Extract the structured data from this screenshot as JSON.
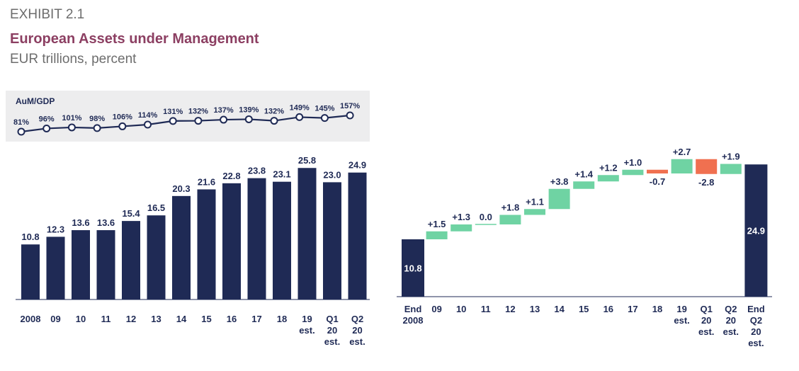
{
  "header": {
    "exhibit": "EXHIBIT 2.1",
    "title": "European Assets under Management",
    "subtitle": "EUR trillions, percent"
  },
  "colors": {
    "bar": "#1f2a55",
    "increase": "#6fd3a3",
    "decrease": "#f07050",
    "panel_bg": "#ededee",
    "title": "#8c3f62"
  },
  "chart_data": [
    {
      "type": "line",
      "title": "AuM/GDP",
      "x": [
        "2008",
        "09",
        "10",
        "11",
        "12",
        "13",
        "14",
        "15",
        "16",
        "17",
        "18",
        "19 est.",
        "Q1 20 est.",
        "Q2 20 est."
      ],
      "values": [
        81,
        96,
        101,
        98,
        106,
        114,
        131,
        132,
        137,
        139,
        132,
        149,
        145,
        157
      ],
      "labels": [
        "81%",
        "96%",
        "101%",
        "98%",
        "106%",
        "114%",
        "131%",
        "132%",
        "137%",
        "139%",
        "132%",
        "149%",
        "145%",
        "157%"
      ],
      "unit": "%"
    },
    {
      "type": "bar",
      "categories": [
        [
          "2008"
        ],
        [
          "09"
        ],
        [
          "10"
        ],
        [
          "11"
        ],
        [
          "12"
        ],
        [
          "13"
        ],
        [
          "14"
        ],
        [
          "15"
        ],
        [
          "16"
        ],
        [
          "17"
        ],
        [
          "18"
        ],
        [
          "19",
          "est."
        ],
        [
          "Q1",
          "20",
          "est."
        ],
        [
          "Q2",
          "20",
          "est."
        ]
      ],
      "values": [
        10.8,
        12.3,
        13.6,
        13.6,
        15.4,
        16.5,
        20.3,
        21.6,
        22.8,
        23.8,
        23.1,
        25.8,
        23.0,
        24.9
      ],
      "labels": [
        "10.8",
        "12.3",
        "13.6",
        "13.6",
        "15.4",
        "16.5",
        "20.3",
        "21.6",
        "22.8",
        "23.8",
        "23.1",
        "25.8",
        "23.0",
        "24.9"
      ],
      "ylim": [
        0,
        27
      ]
    },
    {
      "type": "bar",
      "subtype": "waterfall",
      "categories": [
        [
          "End",
          "2008"
        ],
        [
          "09"
        ],
        [
          "10"
        ],
        [
          "11"
        ],
        [
          "12"
        ],
        [
          "13"
        ],
        [
          "14"
        ],
        [
          "15"
        ],
        [
          "16"
        ],
        [
          "17"
        ],
        [
          "18"
        ],
        [
          "19",
          "est."
        ],
        [
          "Q1",
          "20",
          "est."
        ],
        [
          "Q2",
          "20",
          "est."
        ],
        [
          "End",
          "Q2",
          "20",
          "est."
        ]
      ],
      "start": 10.8,
      "start_label": "10.8",
      "deltas": [
        1.5,
        1.3,
        0.0,
        1.8,
        1.1,
        3.8,
        1.4,
        1.2,
        1.0,
        -0.7,
        2.7,
        -2.8,
        1.9
      ],
      "delta_labels": [
        "+1.5",
        "+1.3",
        "0.0",
        "+1.8",
        "+1.1",
        "+3.8",
        "+1.4",
        "+1.2",
        "+1.0",
        "-0.7",
        "+2.7",
        "-2.8",
        "+1.9"
      ],
      "end": 24.9,
      "end_label": "24.9",
      "ylim": [
        0,
        27
      ]
    }
  ]
}
